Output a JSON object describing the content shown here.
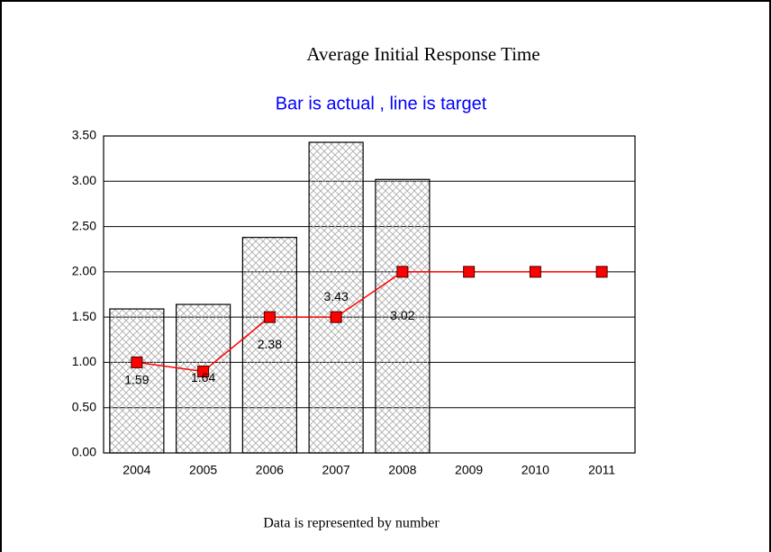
{
  "chart_data": {
    "type": "bar",
    "title": "Average Initial Response Time",
    "subtitle": "Bar is actual , line is target",
    "footer": "Data is represented by number",
    "categories": [
      "2004",
      "2005",
      "2006",
      "2007",
      "2008",
      "2009",
      "2010",
      "2011"
    ],
    "series": [
      {
        "type": "bar",
        "color": "#b0b0b0",
        "values": [
          1.59,
          1.64,
          2.38,
          3.43,
          3.02,
          null,
          null,
          null
        ],
        "value_labels": [
          "1.59",
          "1.64",
          "2.38",
          "3.43",
          "3.02",
          null,
          null,
          null
        ]
      },
      {
        "type": "line",
        "color": "#ff0000",
        "values": [
          1.0,
          0.9,
          1.5,
          1.5,
          2.0,
          2.0,
          2.0,
          2.0
        ]
      }
    ],
    "ylim": [
      0,
      3.5
    ],
    "yticks": [
      {
        "value": 0,
        "label": "0.00"
      },
      {
        "value": 0.5,
        "label": "0.50"
      },
      {
        "value": 1,
        "label": "1.00"
      },
      {
        "value": 1.5,
        "label": "1.50"
      },
      {
        "value": 2,
        "label": "2.00"
      },
      {
        "value": 2.5,
        "label": "2.50"
      },
      {
        "value": 3,
        "label": "3.00"
      },
      {
        "value": 3.5,
        "label": "3.50"
      }
    ],
    "grid": true
  }
}
